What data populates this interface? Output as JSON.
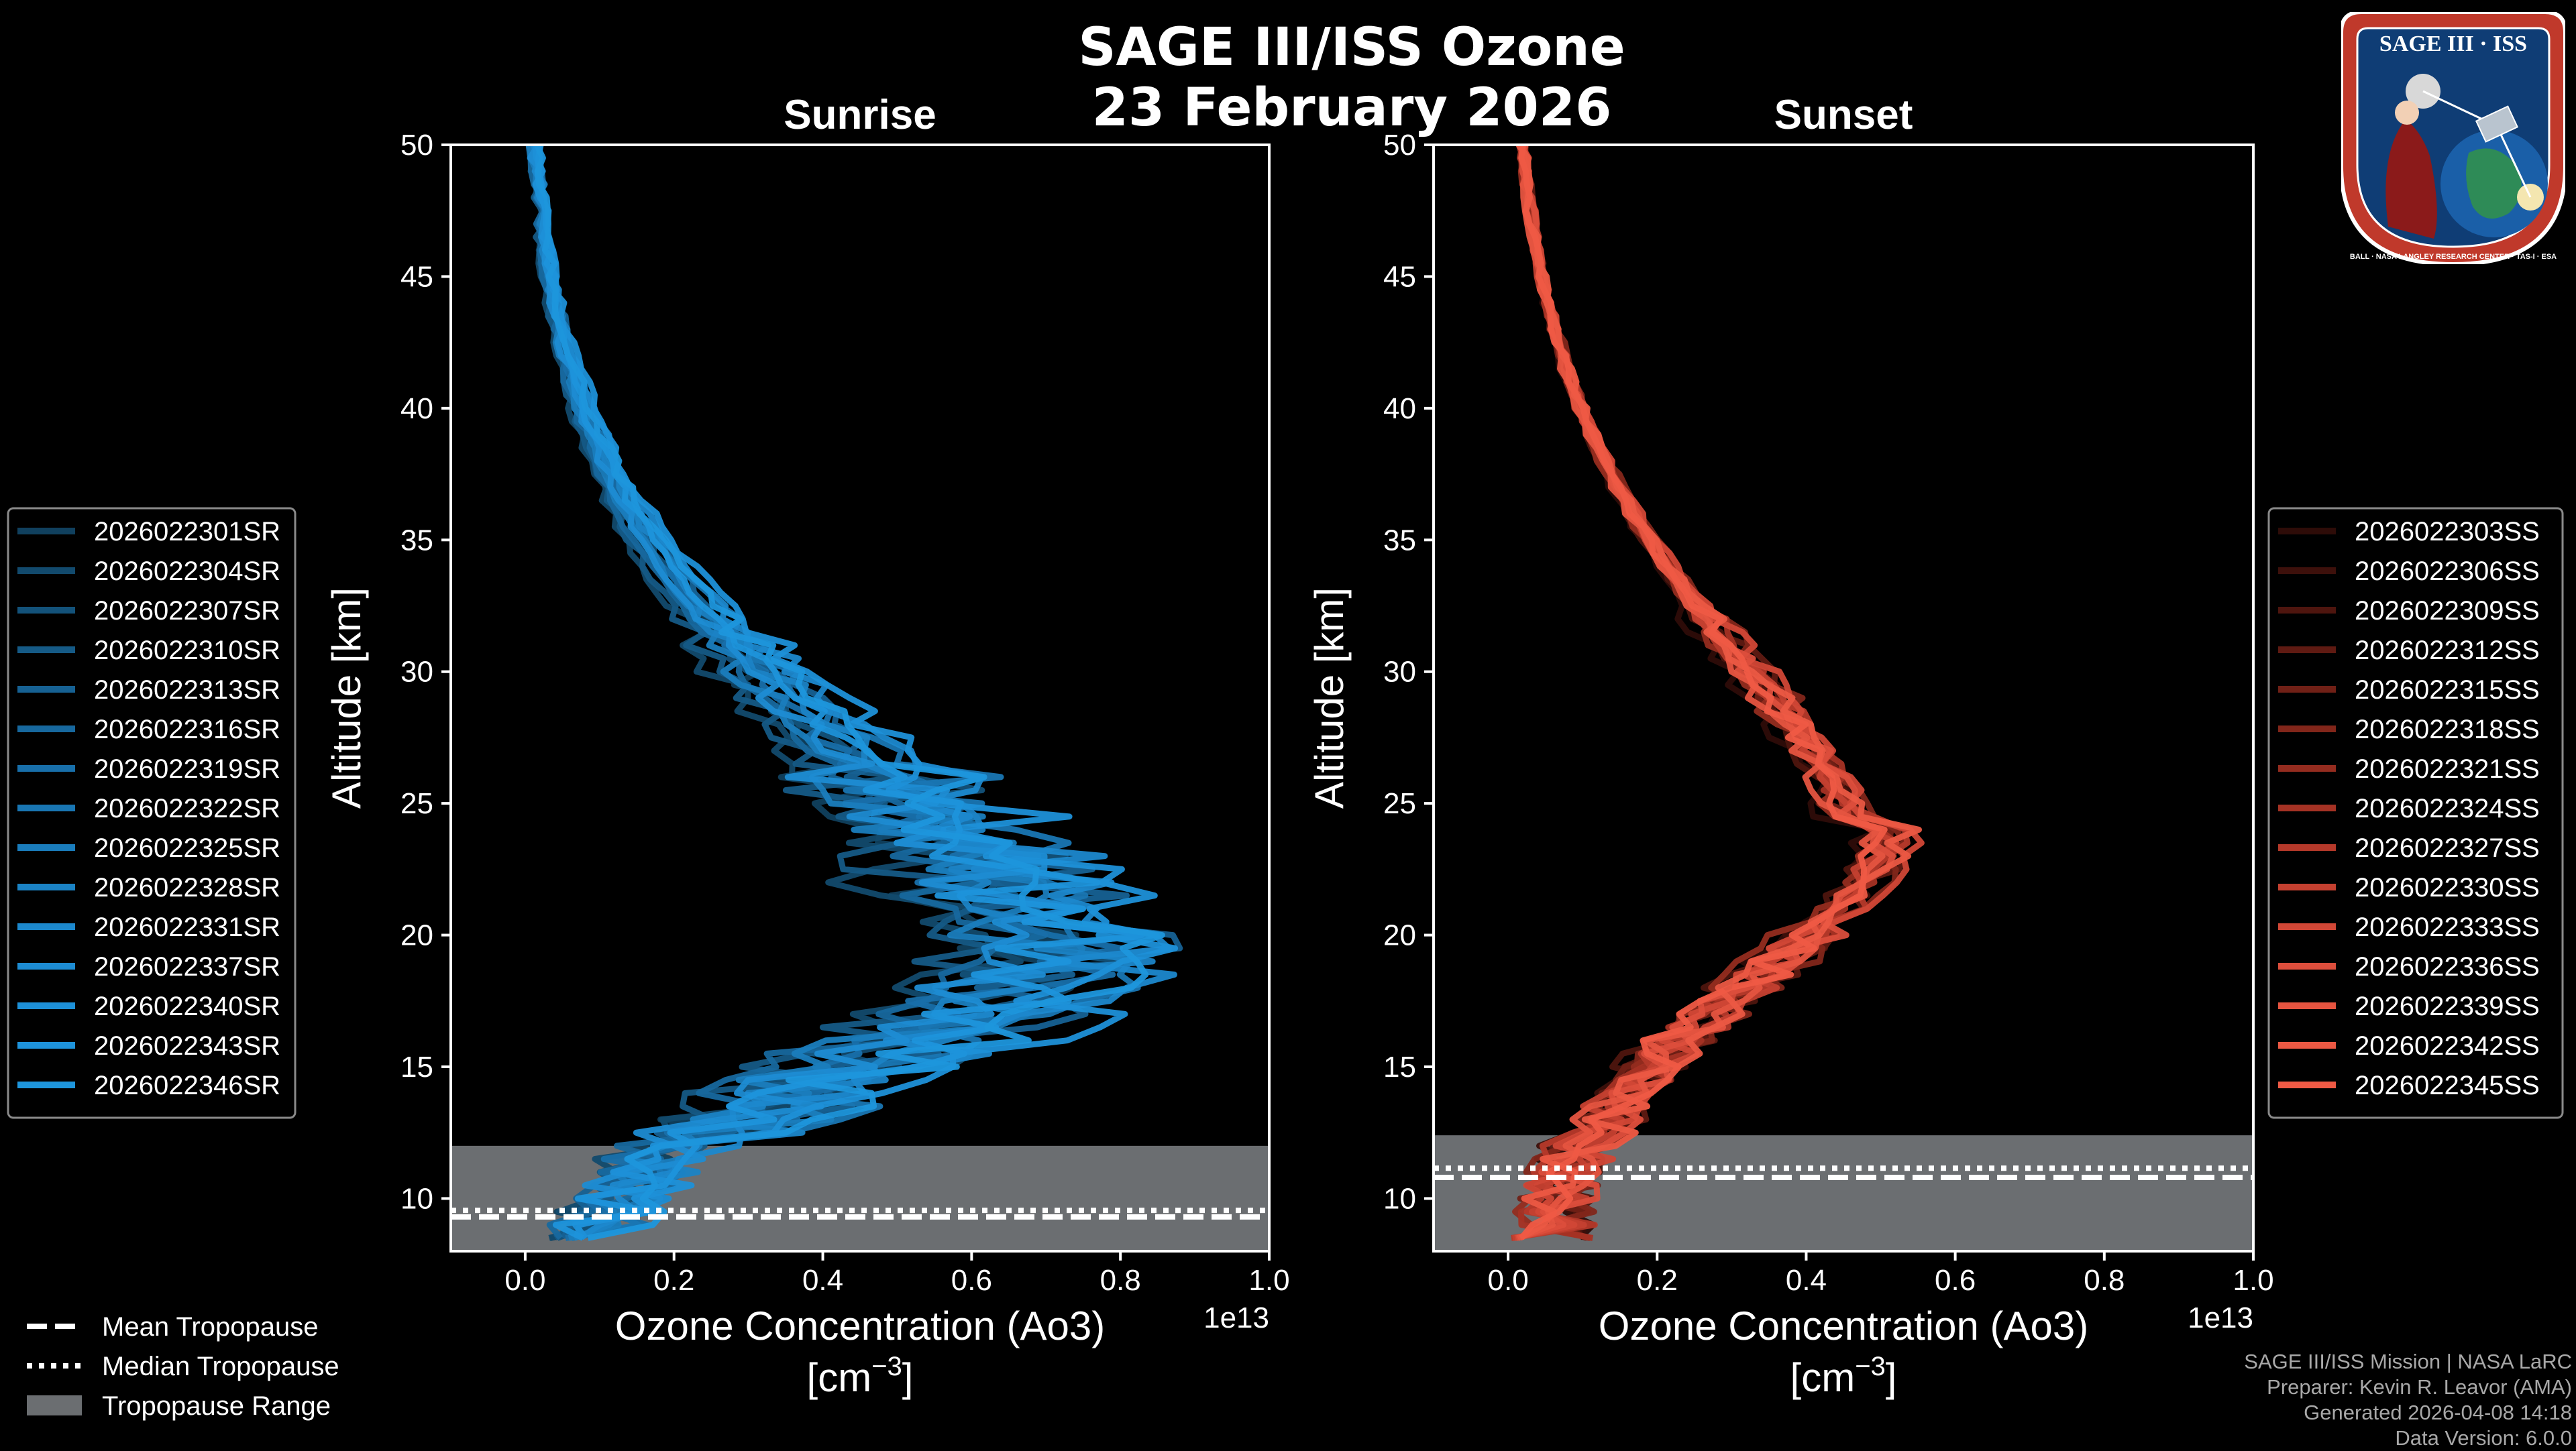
{
  "figure": {
    "title_line1": "SAGE III/ISS Ozone",
    "title_line2": "23 February 2026",
    "footer": {
      "mission": "SAGE III/ISS Mission | NASA LaRC",
      "preparer": "Preparer: Kevin R. Leavor (AMA)",
      "generated": "Generated 2026-04-08 14:18",
      "data_version": "Data Version: 6.0.0"
    },
    "logo": {
      "text": "SAGE III · ISS",
      "ring_text": "BALL · NASA LANGLEY RESEARCH CENTER · TAS-I · ESA",
      "colors": {
        "ring": "#c0392b",
        "inner": "#0f3d75",
        "earth": "#2e8b57",
        "white": "#ffffff"
      }
    },
    "colors": {
      "background": "#000000",
      "axes": "#ffffff",
      "tropopause_fill": "#6b6e71",
      "sunrise_base": "#1e96dc",
      "sunset_base": "#ef5a45"
    }
  },
  "bottom_legend": [
    {
      "label": "Mean Tropopause",
      "style": "dashed"
    },
    {
      "label": "Median Tropopause",
      "style": "dotted"
    },
    {
      "label": "Tropopause Range",
      "style": "patch"
    }
  ],
  "chart_data": [
    {
      "type": "line",
      "panel": "sunrise",
      "title": "Sunrise",
      "xlabel_line1": "Ozone Concentration (Ao3)",
      "xlabel_line2": "[cm",
      "xlabel_exp": "−3",
      "xlabel_close": "]",
      "x_offset_label": "1e13",
      "ylabel": "Altitude [km]",
      "xlim": [
        -0.1,
        1.0
      ],
      "ylim": [
        8,
        50
      ],
      "xticks": [
        0.0,
        0.2,
        0.4,
        0.6,
        0.8,
        1.0
      ],
      "xtick_labels": [
        "0.0",
        "0.2",
        "0.4",
        "0.6",
        "0.8",
        "1.0"
      ],
      "yticks": [
        10,
        15,
        20,
        25,
        30,
        35,
        40,
        45,
        50
      ],
      "ytick_labels": [
        "10",
        "15",
        "20",
        "25",
        "30",
        "35",
        "40",
        "45",
        "50"
      ],
      "tropopause": {
        "mean": 9.3,
        "median": 9.55,
        "range": [
          8,
          12
        ]
      },
      "peak_alt": 20.5,
      "series": [
        {
          "name": "2026022301SR",
          "color": "#10405e",
          "peak": 0.62
        },
        {
          "name": "2026022304SR",
          "color": "#124a6d",
          "peak": 0.55
        },
        {
          "name": "2026022307SR",
          "color": "#13527a",
          "peak": 0.68
        },
        {
          "name": "2026022310SR",
          "color": "#155a86",
          "peak": 0.58
        },
        {
          "name": "2026022313SR",
          "color": "#166193",
          "peak": 0.72
        },
        {
          "name": "2026022316SR",
          "color": "#17689e",
          "peak": 0.6
        },
        {
          "name": "2026022319SR",
          "color": "#186faa",
          "peak": 0.66
        },
        {
          "name": "2026022322SR",
          "color": "#1976b3",
          "peak": 0.74
        },
        {
          "name": "2026022325SR",
          "color": "#1a7dbd",
          "peak": 0.63
        },
        {
          "name": "2026022328SR",
          "color": "#1b83c5",
          "peak": 0.7
        },
        {
          "name": "2026022331SR",
          "color": "#1c88cd",
          "peak": 0.77
        },
        {
          "name": "2026022337SR",
          "color": "#1d8cd3",
          "peak": 0.65
        },
        {
          "name": "2026022340SR",
          "color": "#1d90d8",
          "peak": 0.8
        },
        {
          "name": "2026022343SR",
          "color": "#1e93db",
          "peak": 0.69
        },
        {
          "name": "2026022346SR",
          "color": "#1e96dc",
          "peak": 0.75
        }
      ]
    },
    {
      "type": "line",
      "panel": "sunset",
      "title": "Sunset",
      "xlabel_line1": "Ozone Concentration (Ao3)",
      "xlabel_line2": "[cm",
      "xlabel_exp": "−3",
      "xlabel_close": "]",
      "x_offset_label": "1e13",
      "ylabel": "Altitude [km]",
      "xlim": [
        -0.1,
        1.0
      ],
      "ylim": [
        8,
        50
      ],
      "xticks": [
        0.0,
        0.2,
        0.4,
        0.6,
        0.8,
        1.0
      ],
      "xtick_labels": [
        "0.0",
        "0.2",
        "0.4",
        "0.6",
        "0.8",
        "1.0"
      ],
      "yticks": [
        10,
        15,
        20,
        25,
        30,
        35,
        40,
        45,
        50
      ],
      "ytick_labels": [
        "10",
        "15",
        "20",
        "25",
        "30",
        "35",
        "40",
        "45",
        "50"
      ],
      "tropopause": {
        "mean": 10.8,
        "median": 11.15,
        "range": [
          8,
          12.4
        ]
      },
      "peak_alt": 24.5,
      "series": [
        {
          "name": "2026022303SS",
          "color": "#2e0c08",
          "peak": 0.43
        },
        {
          "name": "2026022306SS",
          "color": "#3d100b",
          "peak": 0.46
        },
        {
          "name": "2026022309SS",
          "color": "#4e150e",
          "peak": 0.44
        },
        {
          "name": "2026022312SS",
          "color": "#5f1a12",
          "peak": 0.47
        },
        {
          "name": "2026022315SS",
          "color": "#702016",
          "peak": 0.45
        },
        {
          "name": "2026022318SS",
          "color": "#82261a",
          "peak": 0.48
        },
        {
          "name": "2026022321SS",
          "color": "#942c1f",
          "peak": 0.44
        },
        {
          "name": "2026022324SS",
          "color": "#a53224",
          "peak": 0.46
        },
        {
          "name": "2026022327SS",
          "color": "#b5392a",
          "peak": 0.47
        },
        {
          "name": "2026022330SS",
          "color": "#c44030",
          "peak": 0.45
        },
        {
          "name": "2026022333SS",
          "color": "#d14736",
          "peak": 0.48
        },
        {
          "name": "2026022336SS",
          "color": "#dc4e3c",
          "peak": 0.46
        },
        {
          "name": "2026022339SS",
          "color": "#e55440",
          "peak": 0.44
        },
        {
          "name": "2026022342SS",
          "color": "#eb5843",
          "peak": 0.47
        },
        {
          "name": "2026022345SS",
          "color": "#ef5a45",
          "peak": 0.45
        }
      ]
    }
  ]
}
